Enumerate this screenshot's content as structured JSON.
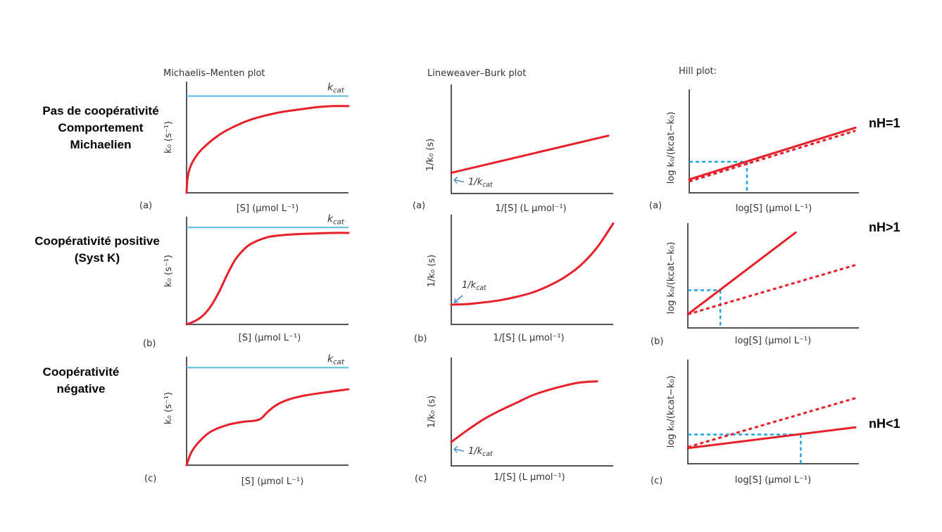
{
  "row_labels": [
    {
      "lines": [
        "Pas de coopérativité",
        "Comportement",
        "Michaelien"
      ]
    },
    {
      "lines": [
        "Coopérativité positive",
        "(Syst K)"
      ]
    },
    {
      "lines": [
        "Coopérativité",
        "négative"
      ]
    }
  ],
  "nh_labels": [
    "nH=1",
    "nH>1",
    "nH<1"
  ],
  "colors": {
    "curve": "#e8202a",
    "kcat_line": "#5bb8e0",
    "guide": "#1aa7e0",
    "axis": "#555555",
    "arrow": "#3a86c8"
  },
  "chart_data": [
    {
      "type": "line",
      "id": "mm-a",
      "title": "Michaelis–Menten plot",
      "panel": "(a)",
      "xlabel": "[S] (μmol L⁻¹)",
      "ylabel": "k₀ (s⁻¹)",
      "kcat_label": "kcat",
      "xlim": [
        0,
        1
      ],
      "ylim": [
        0,
        1
      ],
      "kcat": 0.87,
      "series": [
        {
          "name": "k0",
          "style": "solid",
          "x": [
            0,
            0.005,
            0.02,
            0.05,
            0.1,
            0.2,
            0.3,
            0.4,
            0.5,
            0.6,
            0.7,
            0.8,
            0.9,
            1.0
          ],
          "y": [
            0,
            0.12,
            0.22,
            0.31,
            0.4,
            0.52,
            0.6,
            0.66,
            0.7,
            0.73,
            0.75,
            0.77,
            0.78,
            0.78
          ]
        }
      ]
    },
    {
      "type": "line",
      "id": "lb-a",
      "title": "Lineweaver–Burk plot",
      "panel": "(a)",
      "xlabel": "1/[S] (L μmol⁻¹)",
      "ylabel": "1/k₀ (s)",
      "intercept_label": "1/kcat",
      "xlim": [
        0,
        1
      ],
      "ylim": [
        0,
        1
      ],
      "series": [
        {
          "name": "1/k0",
          "style": "solid",
          "x": [
            0,
            0.97
          ],
          "y": [
            0.19,
            0.53
          ]
        }
      ]
    },
    {
      "type": "line",
      "id": "hill-a",
      "title": "Hill plot:",
      "panel": "(a)",
      "xlabel": "log[S] (μmol L⁻¹)",
      "ylabel": "log k₀/(kcat−k₀)",
      "xlim": [
        0,
        1
      ],
      "ylim": [
        0,
        1
      ],
      "series": [
        {
          "name": "observed",
          "style": "solid",
          "x": [
            0,
            0.98
          ],
          "y": [
            0.13,
            0.63
          ]
        },
        {
          "name": "nH=1 reference",
          "style": "dashed",
          "x": [
            0,
            0.98
          ],
          "y": [
            0.11,
            0.6
          ]
        }
      ],
      "guide": {
        "x": 0.34,
        "y": 0.3
      }
    },
    {
      "type": "line",
      "id": "mm-b",
      "title": "",
      "panel": "(b)",
      "xlabel": "[S]  (μmol L⁻¹)",
      "ylabel": "k₀ (s⁻¹)",
      "kcat_label": "kcat",
      "xlim": [
        0,
        1
      ],
      "ylim": [
        0,
        1
      ],
      "kcat": 0.9,
      "series": [
        {
          "name": "k0",
          "style": "solid",
          "x": [
            0,
            0.05,
            0.1,
            0.15,
            0.2,
            0.25,
            0.3,
            0.35,
            0.4,
            0.5,
            0.6,
            0.7,
            0.8,
            0.9,
            1.0
          ],
          "y": [
            0,
            0.03,
            0.08,
            0.17,
            0.3,
            0.46,
            0.6,
            0.69,
            0.75,
            0.81,
            0.83,
            0.84,
            0.845,
            0.85,
            0.85
          ]
        }
      ]
    },
    {
      "type": "line",
      "id": "lb-b",
      "title": "",
      "panel": "(b)",
      "xlabel": "1/[S] (L μmol⁻¹)",
      "ylabel": "1/k₀ (s)",
      "intercept_label": "1/kcat",
      "xlim": [
        0,
        1
      ],
      "ylim": [
        0,
        1
      ],
      "series": [
        {
          "name": "1/k0",
          "style": "solid",
          "x": [
            0,
            0.1,
            0.2,
            0.3,
            0.4,
            0.5,
            0.6,
            0.7,
            0.8,
            0.9,
            1.0
          ],
          "y": [
            0.18,
            0.185,
            0.2,
            0.22,
            0.25,
            0.29,
            0.35,
            0.43,
            0.54,
            0.7,
            0.92
          ]
        }
      ]
    },
    {
      "type": "line",
      "id": "hill-b",
      "title": "",
      "panel": "(b)",
      "xlabel": "log[S] (μmol L⁻¹)",
      "ylabel": "log k₀/(kcat−k₀)",
      "xlim": [
        0,
        1
      ],
      "ylim": [
        0,
        1
      ],
      "series": [
        {
          "name": "observed",
          "style": "solid",
          "x": [
            0,
            0.63
          ],
          "y": [
            0.13,
            0.91
          ]
        },
        {
          "name": "nH=1 reference",
          "style": "dashed",
          "x": [
            0,
            0.98
          ],
          "y": [
            0.13,
            0.6
          ]
        }
      ],
      "guide": {
        "x": 0.19,
        "y": 0.36
      }
    },
    {
      "type": "line",
      "id": "mm-c",
      "title": "",
      "panel": "(c)",
      "xlabel": "[S]  (μmol L⁻¹)",
      "ylabel": "k₀ (s⁻¹)",
      "kcat_label": "kcat",
      "xlim": [
        0,
        1
      ],
      "ylim": [
        0,
        1
      ],
      "kcat": 0.9,
      "series": [
        {
          "name": "k0",
          "style": "solid",
          "x": [
            0,
            0.03,
            0.08,
            0.15,
            0.25,
            0.35,
            0.42,
            0.46,
            0.5,
            0.55,
            0.62,
            0.72,
            0.85,
            1.0
          ],
          "y": [
            0,
            0.12,
            0.22,
            0.31,
            0.37,
            0.4,
            0.41,
            0.43,
            0.49,
            0.55,
            0.6,
            0.64,
            0.67,
            0.7
          ]
        }
      ]
    },
    {
      "type": "line",
      "id": "lb-c",
      "title": "",
      "panel": "(c)",
      "xlabel": "1/[S] (L μmol⁻¹)",
      "ylabel": "1/k₀ (s)",
      "intercept_label": "1/kcat",
      "xlim": [
        0,
        1
      ],
      "ylim": [
        0,
        1
      ],
      "series": [
        {
          "name": "1/k0",
          "style": "solid",
          "x": [
            0,
            0.1,
            0.2,
            0.3,
            0.4,
            0.5,
            0.6,
            0.7,
            0.8,
            0.9
          ],
          "y": [
            0.22,
            0.33,
            0.43,
            0.51,
            0.58,
            0.65,
            0.7,
            0.74,
            0.77,
            0.78
          ]
        }
      ]
    },
    {
      "type": "line",
      "id": "hill-c",
      "title": "",
      "panel": "(c)",
      "xlabel": "log[S] (μmol L⁻¹)",
      "ylabel": "log k₀/(kcat−k₀)",
      "xlim": [
        0,
        1
      ],
      "ylim": [
        0,
        1
      ],
      "series": [
        {
          "name": "observed",
          "style": "solid",
          "x": [
            0,
            0.98
          ],
          "y": [
            0.15,
            0.35
          ]
        },
        {
          "name": "nH=1 reference",
          "style": "dashed",
          "x": [
            0,
            0.98
          ],
          "y": [
            0.16,
            0.63
          ]
        }
      ],
      "guide": {
        "x": 0.66,
        "y": 0.28
      }
    }
  ]
}
